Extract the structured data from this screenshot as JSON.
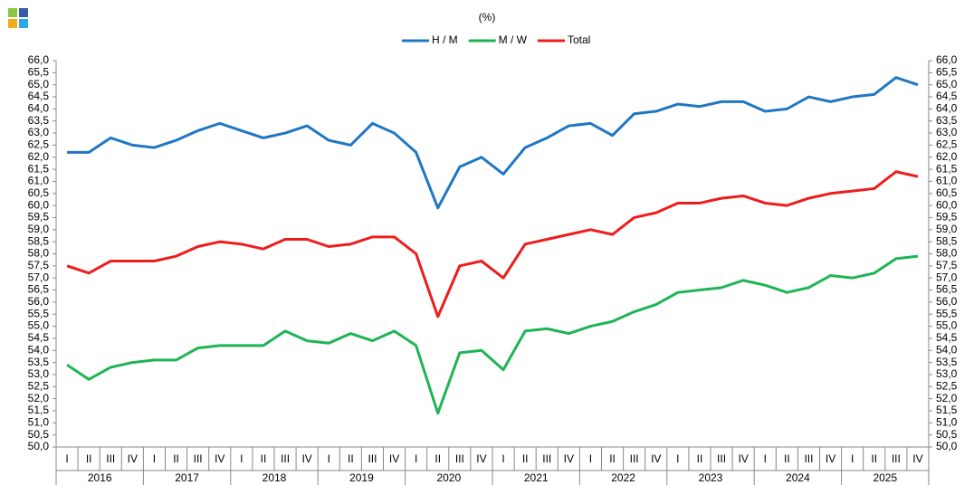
{
  "chart_data": {
    "type": "line",
    "subtitle": "(%)",
    "categories": [
      "I",
      "II",
      "III",
      "IV",
      "I",
      "II",
      "III",
      "IV",
      "I",
      "II",
      "III",
      "IV",
      "I",
      "II",
      "III",
      "IV",
      "I",
      "II",
      "III",
      "IV",
      "I",
      "II",
      "III",
      "IV",
      "I",
      "II",
      "III",
      "IV",
      "I",
      "II",
      "III",
      "IV",
      "I",
      "II",
      "III",
      "IV",
      "I",
      "II",
      "III",
      "IV"
    ],
    "x_groups": [
      "2016",
      "2017",
      "2018",
      "2019",
      "2020",
      "2021",
      "2022",
      "2023",
      "2024",
      "2025"
    ],
    "series": [
      {
        "name": "H / M",
        "color": "#1f77c4",
        "values": [
          62.2,
          62.2,
          62.8,
          62.5,
          62.4,
          62.7,
          63.1,
          63.4,
          63.1,
          62.8,
          63.0,
          63.3,
          62.7,
          62.5,
          63.4,
          63.0,
          62.2,
          59.9,
          61.6,
          62.0,
          61.3,
          62.4,
          62.8,
          63.3,
          63.4,
          62.9,
          63.8,
          63.9,
          64.2,
          64.1,
          64.3,
          64.3,
          63.9,
          64.0,
          64.5,
          64.3,
          64.5,
          64.6,
          65.3,
          65.0
        ]
      },
      {
        "name": "M / W",
        "color": "#1fb454",
        "values": [
          53.4,
          52.8,
          53.3,
          53.5,
          53.6,
          53.6,
          54.1,
          54.2,
          54.2,
          54.2,
          54.8,
          54.4,
          54.3,
          54.7,
          54.4,
          54.8,
          54.2,
          51.4,
          53.9,
          54.0,
          53.2,
          54.8,
          54.9,
          54.7,
          55.0,
          55.2,
          55.6,
          55.9,
          56.4,
          56.5,
          56.6,
          56.9,
          56.7,
          56.4,
          56.6,
          57.1,
          57.0,
          57.2,
          57.8,
          57.9
        ]
      },
      {
        "name": "Total",
        "color": "#ee1c1c",
        "values": [
          57.5,
          57.2,
          57.7,
          57.7,
          57.7,
          57.9,
          58.3,
          58.5,
          58.4,
          58.2,
          58.6,
          58.6,
          58.3,
          58.4,
          58.7,
          58.7,
          58.0,
          55.4,
          57.5,
          57.7,
          57.0,
          58.4,
          58.6,
          58.8,
          59.0,
          58.8,
          59.5,
          59.7,
          60.1,
          60.1,
          60.3,
          60.4,
          60.1,
          60.0,
          60.3,
          60.5,
          60.6,
          60.7,
          61.4,
          61.2
        ]
      }
    ],
    "ylim": [
      50,
      66
    ],
    "yticks": [
      {
        "value": 50,
        "label": "50,0"
      },
      {
        "value": 50.5,
        "label": "50,5"
      },
      {
        "value": 51,
        "label": "51,0"
      },
      {
        "value": 51.5,
        "label": "51,5"
      },
      {
        "value": 52,
        "label": "52,0"
      },
      {
        "value": 52.5,
        "label": "52,5"
      },
      {
        "value": 53,
        "label": "53,0"
      },
      {
        "value": 53.5,
        "label": "53,5"
      },
      {
        "value": 54,
        "label": "54,0"
      },
      {
        "value": 54.5,
        "label": "54,5"
      },
      {
        "value": 55,
        "label": "55,0"
      },
      {
        "value": 55.5,
        "label": "55,5"
      },
      {
        "value": 56,
        "label": "56,0"
      },
      {
        "value": 56.5,
        "label": "56,5"
      },
      {
        "value": 57,
        "label": "57,0"
      },
      {
        "value": 57.5,
        "label": "57,5"
      },
      {
        "value": 58,
        "label": "58,0"
      },
      {
        "value": 58.5,
        "label": "58,5"
      },
      {
        "value": 59,
        "label": "59,0"
      },
      {
        "value": 59.5,
        "label": "59,5"
      },
      {
        "value": 60,
        "label": "60,0"
      },
      {
        "value": 60.5,
        "label": "60,5"
      },
      {
        "value": 61,
        "label": "61,0"
      },
      {
        "value": 61.5,
        "label": "61,5"
      },
      {
        "value": 62,
        "label": "62,0"
      },
      {
        "value": 62.5,
        "label": "62,5"
      },
      {
        "value": 63,
        "label": "63,0"
      },
      {
        "value": 63.5,
        "label": "63,5"
      },
      {
        "value": 64,
        "label": "64,0"
      },
      {
        "value": 64.5,
        "label": "64,5"
      },
      {
        "value": 65,
        "label": "65,0"
      },
      {
        "value": 65.5,
        "label": "65,5"
      },
      {
        "value": 66,
        "label": "66,0"
      }
    ]
  }
}
